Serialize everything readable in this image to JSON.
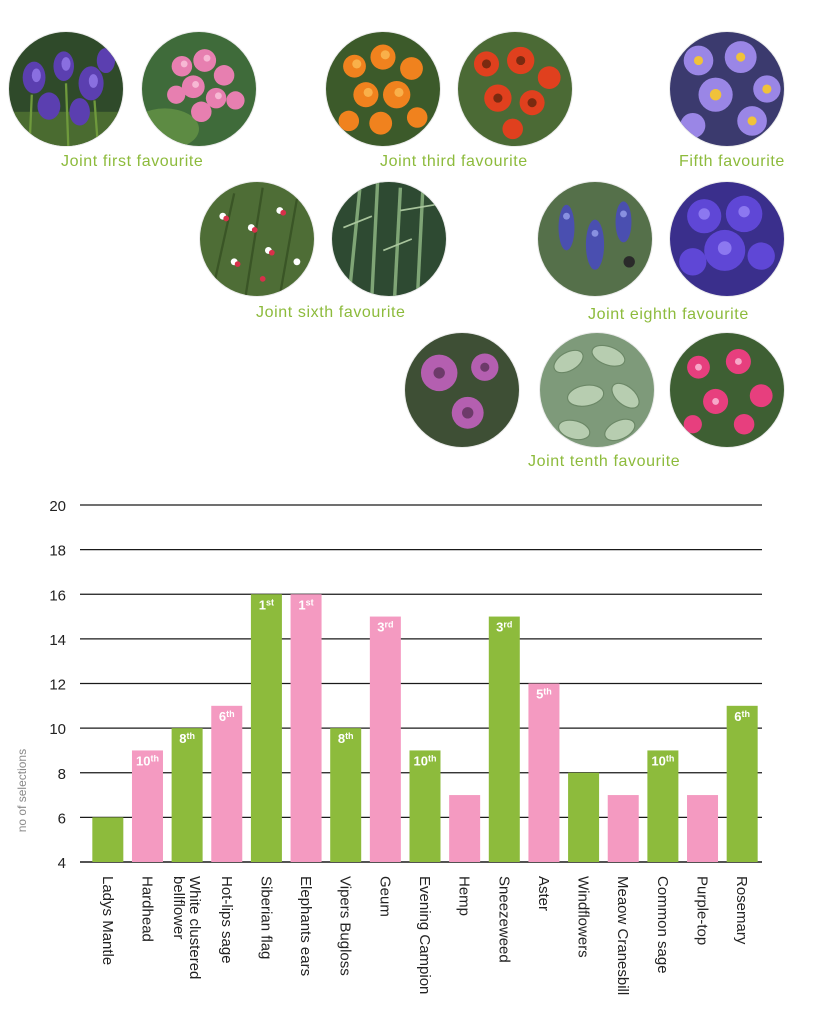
{
  "favourites": [
    {
      "label": "Joint first favourite",
      "photos": [
        "siberian-flag-photo",
        "elephants-ears-photo"
      ]
    },
    {
      "label": "Joint third favourite",
      "photos": [
        "sneezeweed-photo",
        "geum-photo"
      ]
    },
    {
      "label": "Fifth favourite",
      "photos": [
        "aster-photo"
      ]
    },
    {
      "label": "Joint sixth favourite",
      "photos": [
        "hot-lips-sage-photo",
        "rosemary-photo"
      ]
    },
    {
      "label": "Joint eighth favourite",
      "photos": [
        "vipers-bugloss-photo",
        "white-clustered-bellflower-photo"
      ]
    },
    {
      "label": "Joint tenth favourite",
      "photos": [
        "hardhead-photo",
        "common-sage-photo",
        "evening-campion-photo"
      ]
    }
  ],
  "colors": {
    "green": "#8dbb3c",
    "pink": "#f49ac1",
    "label_green": "#8dbb3c",
    "axis": "#1a1a1a"
  },
  "chart_data": {
    "type": "bar",
    "ylabel": "no of selections",
    "ylim": [
      4,
      20
    ],
    "yticks": [
      4,
      6,
      8,
      10,
      12,
      14,
      16,
      18,
      20
    ],
    "grid": true,
    "categories": [
      "Ladys Mantle",
      "Hardhead",
      "White clustered bellflower",
      "Hot-lips sage",
      "Siberian flag",
      "Elephants ears",
      "Vipers Bugloss",
      "Geum",
      "Evening Campion",
      "Hemp",
      "Sneezeweed",
      "Aster",
      "Windflowers",
      "Meaow Cranesbill",
      "Common sage",
      "Purple-top",
      "Rosemary"
    ],
    "values": [
      6,
      9,
      10,
      11,
      16,
      16,
      10,
      15,
      9,
      7,
      15,
      12,
      8,
      7,
      9,
      7,
      11
    ],
    "bar_colors": [
      "green",
      "pink",
      "green",
      "pink",
      "green",
      "pink",
      "green",
      "pink",
      "green",
      "pink",
      "green",
      "pink",
      "green",
      "pink",
      "green",
      "pink",
      "green"
    ],
    "ranks": [
      {
        "num": "",
        "suffix": ""
      },
      {
        "num": "10",
        "suffix": "th"
      },
      {
        "num": "8",
        "suffix": "th"
      },
      {
        "num": "6",
        "suffix": "th"
      },
      {
        "num": "1",
        "suffix": "st"
      },
      {
        "num": "1",
        "suffix": "st"
      },
      {
        "num": "8",
        "suffix": "th"
      },
      {
        "num": "3",
        "suffix": "rd"
      },
      {
        "num": "10",
        "suffix": "th"
      },
      {
        "num": "",
        "suffix": ""
      },
      {
        "num": "3",
        "suffix": "rd"
      },
      {
        "num": "5",
        "suffix": "th"
      },
      {
        "num": "",
        "suffix": ""
      },
      {
        "num": "",
        "suffix": ""
      },
      {
        "num": "10",
        "suffix": "th"
      },
      {
        "num": "",
        "suffix": ""
      },
      {
        "num": "6",
        "suffix": "th"
      }
    ]
  }
}
